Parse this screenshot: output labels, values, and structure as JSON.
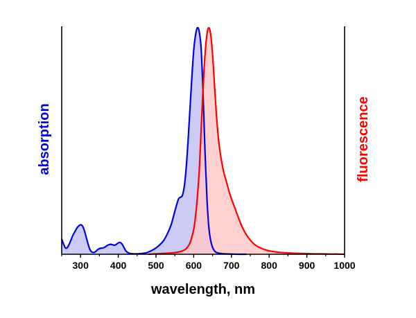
{
  "chart_data": {
    "type": "area",
    "title": "",
    "xlabel": "wavelength, nm",
    "ylabel_left": "absorption",
    "ylabel_right": "fluorescence",
    "xlim": [
      250,
      1000
    ],
    "ylim": [
      0,
      1
    ],
    "xticks": [
      300,
      400,
      500,
      600,
      700,
      800,
      900,
      1000
    ],
    "grid": false,
    "legend": "none",
    "colors": {
      "absorption_line": "#0000e0",
      "absorption_fill": "#c8c8f4",
      "fluorescence_line": "#ff0000",
      "fluorescence_fill": "#ffc8c8",
      "axis": "#000000"
    },
    "series": [
      {
        "key": "absorption",
        "axis": "left",
        "x": [
          250,
          255,
          260,
          265,
          270,
          275,
          280,
          285,
          290,
          295,
          300,
          305,
          310,
          315,
          320,
          325,
          330,
          335,
          340,
          345,
          350,
          355,
          360,
          365,
          370,
          375,
          380,
          385,
          390,
          395,
          400,
          405,
          410,
          415,
          420,
          425,
          430,
          440,
          450,
          460,
          470,
          480,
          490,
          500,
          510,
          520,
          530,
          540,
          550,
          555,
          560,
          565,
          570,
          575,
          580,
          585,
          590,
          595,
          600,
          605,
          610,
          615,
          620,
          625,
          630,
          635,
          640,
          645,
          650,
          655,
          660,
          670,
          680,
          700,
          720,
          740
        ],
        "y": [
          0.068,
          0.045,
          0.028,
          0.03,
          0.045,
          0.065,
          0.085,
          0.1,
          0.115,
          0.125,
          0.13,
          0.125,
          0.105,
          0.075,
          0.045,
          0.02,
          0.01,
          0.008,
          0.012,
          0.02,
          0.025,
          0.027,
          0.028,
          0.032,
          0.038,
          0.042,
          0.044,
          0.042,
          0.04,
          0.044,
          0.05,
          0.052,
          0.045,
          0.03,
          0.015,
          0.008,
          0.004,
          0.002,
          0.002,
          0.003,
          0.005,
          0.01,
          0.018,
          0.028,
          0.042,
          0.06,
          0.09,
          0.13,
          0.19,
          0.22,
          0.245,
          0.252,
          0.26,
          0.3,
          0.38,
          0.5,
          0.64,
          0.78,
          0.9,
          0.97,
          1.0,
          0.98,
          0.9,
          0.7,
          0.45,
          0.25,
          0.12,
          0.06,
          0.03,
          0.015,
          0.008,
          0.004,
          0.002,
          0.001,
          0.0,
          0.0
        ]
      },
      {
        "key": "fluorescence",
        "axis": "right",
        "x": [
          480,
          500,
          520,
          540,
          560,
          570,
          580,
          590,
          600,
          605,
          610,
          615,
          620,
          625,
          630,
          635,
          640,
          645,
          650,
          655,
          660,
          665,
          670,
          675,
          680,
          685,
          690,
          695,
          700,
          710,
          720,
          730,
          740,
          750,
          760,
          770,
          780,
          790,
          800,
          820,
          840,
          860,
          880,
          900,
          920,
          940,
          960,
          980,
          1000
        ],
        "y": [
          0.0,
          0.002,
          0.004,
          0.006,
          0.01,
          0.015,
          0.025,
          0.05,
          0.11,
          0.17,
          0.26,
          0.38,
          0.56,
          0.74,
          0.88,
          0.97,
          1.0,
          0.97,
          0.88,
          0.75,
          0.62,
          0.52,
          0.45,
          0.4,
          0.36,
          0.33,
          0.3,
          0.27,
          0.245,
          0.2,
          0.155,
          0.115,
          0.085,
          0.062,
          0.045,
          0.034,
          0.026,
          0.02,
          0.015,
          0.01,
          0.007,
          0.005,
          0.004,
          0.003,
          0.002,
          0.002,
          0.001,
          0.001,
          0.0
        ]
      }
    ]
  }
}
